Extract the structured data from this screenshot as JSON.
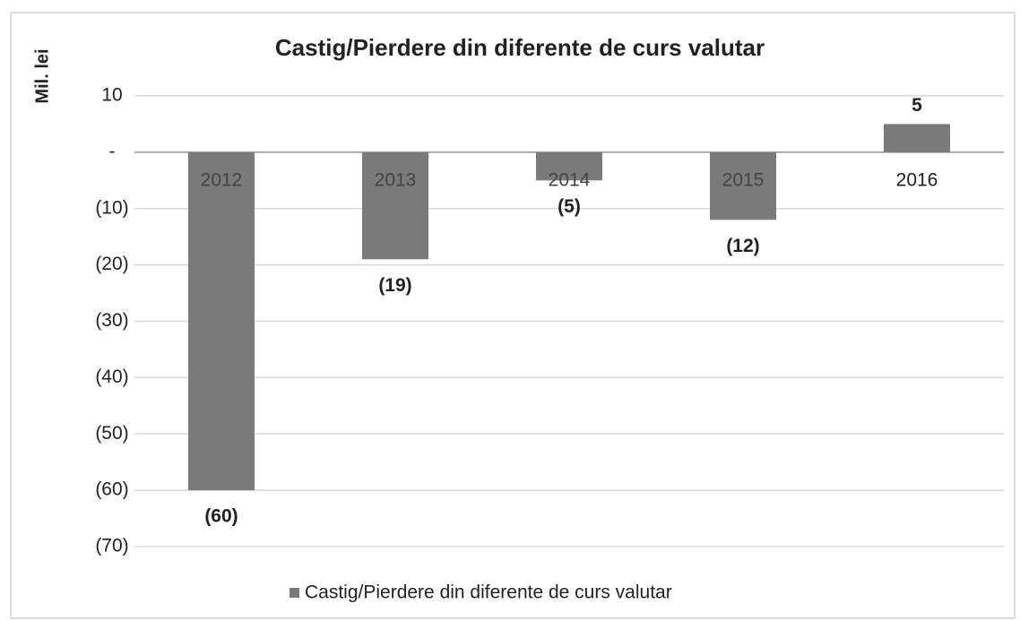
{
  "chart_data": {
    "type": "bar",
    "title": "Castig/Pierdere din diferente de curs valutar",
    "y_label": "Mil. lei",
    "categories": [
      "2012",
      "2013",
      "2014",
      "2015",
      "2016"
    ],
    "series": [
      {
        "name": "Castig/Pierdere din diferente de curs valutar",
        "color": "#7a7a7a",
        "values": [
          -60,
          -19,
          -5,
          -12,
          5
        ],
        "value_labels": [
          "(60)",
          "(19)",
          "(5)",
          "(12)",
          "5"
        ]
      }
    ],
    "ylim": [
      -70,
      10
    ],
    "yticks": [
      {
        "value": -70,
        "label": "(70)"
      },
      {
        "value": -60,
        "label": "(60)"
      },
      {
        "value": -50,
        "label": "(50)"
      },
      {
        "value": -40,
        "label": "(40)"
      },
      {
        "value": -30,
        "label": "(30)"
      },
      {
        "value": -20,
        "label": "(20)"
      },
      {
        "value": -10,
        "label": "(10)"
      },
      {
        "value": 0,
        "label": "-"
      },
      10
    ],
    "grid": true,
    "legend": "bottom"
  }
}
